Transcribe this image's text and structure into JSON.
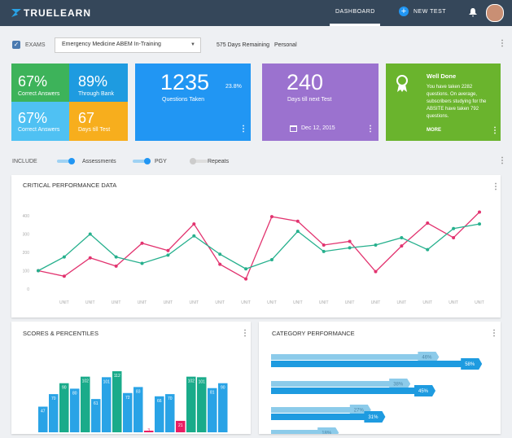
{
  "header": {
    "logo": "TRUELEARN",
    "nav": [
      "DASHBOARD",
      "NEW TEST"
    ]
  },
  "toolbar": {
    "exams_label": "EXAMS",
    "exam": "Emergency Medicine ABEM In-Training",
    "days_remaining": "575 Days Remaining",
    "mode": "Personal"
  },
  "tiles": [
    {
      "value": "67%",
      "label": "Correct Answers"
    },
    {
      "value": "89%",
      "label": "Through Bank"
    },
    {
      "value": "67%",
      "label": "Correct Answers"
    },
    {
      "value": "67",
      "label": "Days till Test"
    }
  ],
  "cards": [
    {
      "value": "1235",
      "change": "23.8%",
      "label": "Questions Taken"
    },
    {
      "value": "240",
      "label": "Days till next Test",
      "date": "Dec 12, 2015"
    },
    {
      "title": "Well Done",
      "text": "You have taken 2282 questions. On average, subscribers studying for the ABSITE have taken 792 questions.",
      "link": "MORE"
    }
  ],
  "include": {
    "label": "INCLUDE",
    "options": [
      "Assessments",
      "PGY",
      "Repeats"
    ]
  },
  "chart_data": [
    {
      "type": "line",
      "title": "CRITICAL PERFORMANCE DATA",
      "categories": [
        null,
        "UNIT",
        "UNIT",
        "UNIT",
        "UNIT",
        "UNIT",
        "UNIT",
        "UNIT",
        "UNIT",
        "UNIT",
        "UNIT",
        "UNIT",
        "UNIT",
        "UNIT",
        "UNIT",
        "UNIT",
        "UNIT",
        "UNIT"
      ],
      "series": [
        {
          "color": "#e2336f",
          "values": [
            100,
            70,
            170,
            125,
            250,
            210,
            355,
            135,
            55,
            395,
            370,
            240,
            260,
            95,
            235,
            360,
            280,
            420
          ]
        },
        {
          "color": "#26b08d",
          "values": [
            100,
            175,
            300,
            175,
            140,
            185,
            290,
            190,
            110,
            160,
            315,
            205,
            225,
            240,
            280,
            215,
            330,
            355
          ]
        }
      ],
      "ylim": [
        0,
        440
      ],
      "yticks": [
        0,
        100,
        200,
        300,
        400
      ],
      "grid": false
    },
    {
      "type": "bar",
      "title": "SCORES & PERCENTILES",
      "values": [
        47,
        70,
        90,
        80,
        102,
        61,
        101,
        112,
        72,
        83,
        3,
        66,
        70,
        21,
        102,
        101,
        81,
        90
      ],
      "colors": [
        "#29a3e6",
        "#29a3e6",
        "#1aab8a",
        "#29a3e6",
        "#1aab8a",
        "#29a3e6",
        "#29a3e6",
        "#1aab8a",
        "#29a3e6",
        "#29a3e6",
        "#e91e63",
        "#29a3e6",
        "#29a3e6",
        "#e91e63",
        "#1aab8a",
        "#1aab8a",
        "#29a3e6",
        "#29a3e6"
      ]
    },
    {
      "type": "hbar",
      "title": "CATEGORY PERFORMANCE",
      "series": [
        {
          "color": "#8ccbea",
          "values": [
            46,
            38,
            27,
            18
          ],
          "value_labels": [
            "46%",
            "38%",
            "27%",
            "18%"
          ]
        },
        {
          "color": "#1e9be0",
          "values": [
            58,
            45,
            31
          ],
          "value_labels": [
            "58%",
            "45%",
            "31%"
          ]
        }
      ]
    }
  ]
}
